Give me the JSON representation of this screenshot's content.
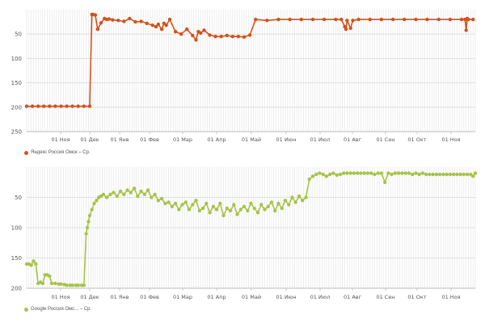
{
  "chart_data": [
    {
      "type": "line",
      "y_reversed": true,
      "ylim": [
        0,
        250
      ],
      "y_ticks": [
        "50",
        "100",
        "150",
        "200",
        "250"
      ],
      "y_tick_values": [
        50,
        100,
        150,
        200,
        250
      ],
      "x_tick_labels": [
        "01 Ноя",
        "01 Дек",
        "01 Янв",
        "01 Фев",
        "01 Мар",
        "01 Апр",
        "01 Май",
        "01 Июн",
        "01 Июл",
        "01 Авг",
        "01 Сен",
        "01 Окт",
        "01 Ноя"
      ],
      "legend_position": "bottom-left",
      "grid": true,
      "series": [
        {
          "name": "Яндекс Россия Омск – Ср.",
          "color": "#d2521c",
          "x_day": [
            0,
            5,
            10,
            15,
            20,
            25,
            30,
            35,
            40,
            45,
            50,
            55,
            57,
            58,
            60,
            62,
            65,
            68,
            70,
            72,
            75,
            80,
            85,
            90,
            95,
            100,
            105,
            110,
            113,
            115,
            118,
            120,
            122,
            125,
            130,
            135,
            140,
            145,
            148,
            150,
            152,
            155,
            160,
            165,
            170,
            175,
            180,
            185,
            190,
            195,
            200,
            210,
            220,
            230,
            240,
            250,
            260,
            270,
            275,
            278,
            279,
            280,
            283,
            285,
            290,
            300,
            310,
            320,
            330,
            340,
            350,
            360,
            370,
            380,
            383,
            384,
            385,
            386,
            390
          ],
          "y": [
            198,
            198,
            198,
            198,
            198,
            198,
            198,
            198,
            198,
            198,
            198,
            198,
            10,
            10,
            11,
            40,
            27,
            18,
            20,
            19,
            21,
            22,
            24,
            18,
            25,
            24,
            28,
            32,
            35,
            30,
            40,
            28,
            32,
            20,
            45,
            50,
            40,
            53,
            62,
            45,
            48,
            42,
            52,
            55,
            55,
            53,
            55,
            55,
            56,
            52,
            20,
            22,
            20,
            20,
            20,
            20,
            20,
            20,
            20,
            35,
            40,
            22,
            38,
            22,
            20,
            20,
            20,
            20,
            20,
            20,
            20,
            20,
            20,
            20,
            20,
            42,
            18,
            20,
            20
          ]
        }
      ]
    },
    {
      "type": "line",
      "y_reversed": true,
      "ylim": [
        0,
        200
      ],
      "y_ticks": [
        "50",
        "100",
        "150",
        "200"
      ],
      "y_tick_values": [
        50,
        100,
        150,
        200
      ],
      "x_tick_labels": [
        "01 Ноя",
        "01 Дек",
        "01 Янв",
        "01 Фев",
        "01 Мар",
        "01 Апр",
        "01 Май",
        "01 Июн",
        "01 Июл",
        "01 Авг",
        "01 Сен",
        "01 Окт",
        "01 Ноя"
      ],
      "legend_position": "bottom-left",
      "grid": true,
      "series": [
        {
          "name": "Google Россия Омс... – Ср.",
          "color": "#a8c34a",
          "x_day": [
            0,
            2,
            4,
            6,
            8,
            10,
            12,
            14,
            16,
            18,
            20,
            22,
            25,
            28,
            30,
            33,
            35,
            38,
            40,
            43,
            45,
            48,
            50,
            52,
            53,
            54,
            55,
            57,
            59,
            61,
            63,
            65,
            67,
            70,
            73,
            76,
            79,
            82,
            85,
            88,
            91,
            94,
            97,
            100,
            103,
            106,
            109,
            112,
            115,
            118,
            121,
            124,
            127,
            130,
            133,
            136,
            139,
            142,
            145,
            148,
            151,
            154,
            157,
            160,
            163,
            166,
            169,
            172,
            175,
            178,
            181,
            184,
            187,
            190,
            193,
            196,
            199,
            202,
            205,
            208,
            211,
            214,
            217,
            220,
            223,
            226,
            229,
            232,
            235,
            238,
            241,
            244,
            247,
            250,
            253,
            256,
            259,
            262,
            265,
            268,
            271,
            274,
            277,
            280,
            283,
            286,
            289,
            292,
            295,
            298,
            301,
            304,
            307,
            310,
            313,
            316,
            319,
            322,
            325,
            328,
            331,
            334,
            337,
            340,
            343,
            346,
            349,
            352,
            355,
            358,
            361,
            364,
            367,
            370,
            373,
            376,
            379,
            382,
            385,
            388,
            390,
            392
          ],
          "y": [
            160,
            160,
            162,
            155,
            160,
            192,
            190,
            192,
            178,
            178,
            180,
            192,
            192,
            193,
            193,
            194,
            195,
            195,
            195,
            195,
            195,
            195,
            195,
            110,
            100,
            90,
            80,
            70,
            60,
            55,
            50,
            48,
            45,
            50,
            45,
            42,
            48,
            40,
            45,
            38,
            42,
            35,
            48,
            40,
            45,
            38,
            50,
            45,
            55,
            52,
            60,
            58,
            65,
            60,
            70,
            62,
            58,
            70,
            62,
            55,
            72,
            68,
            60,
            75,
            65,
            70,
            60,
            80,
            68,
            72,
            62,
            78,
            70,
            65,
            72,
            60,
            68,
            75,
            62,
            70,
            65,
            58,
            72,
            60,
            68,
            55,
            62,
            50,
            58,
            48,
            55,
            50,
            20,
            15,
            12,
            10,
            12,
            15,
            12,
            10,
            13,
            12,
            10,
            10,
            10,
            10,
            10,
            10,
            10,
            10,
            10,
            12,
            10,
            10,
            25,
            10,
            12,
            10,
            10,
            10,
            10,
            10,
            12,
            10,
            12,
            10,
            12,
            12,
            12,
            12,
            12,
            12,
            12,
            12,
            12,
            12,
            12,
            12,
            12,
            12,
            15,
            10
          ]
        }
      ]
    }
  ]
}
